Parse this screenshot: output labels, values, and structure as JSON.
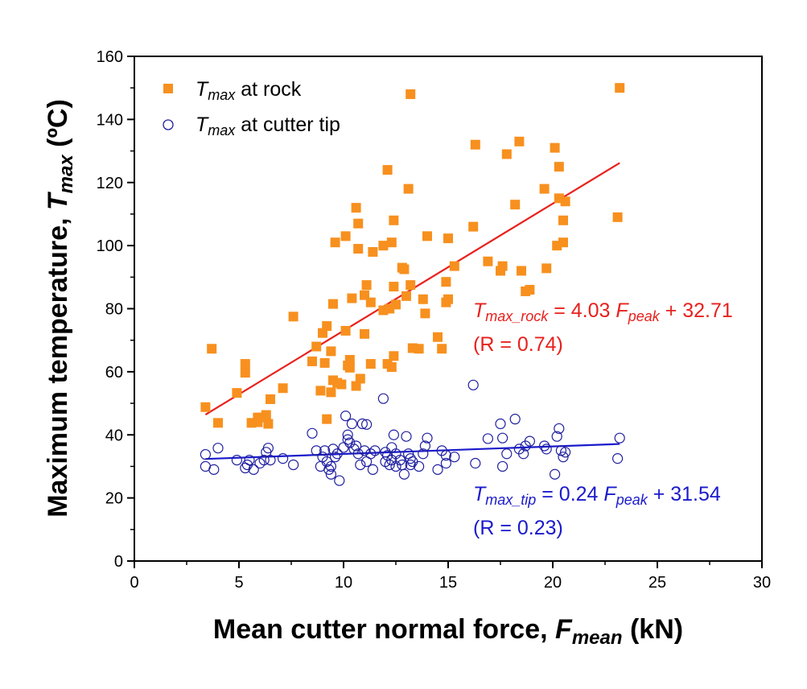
{
  "chart_data": {
    "type": "scatter",
    "title": "",
    "xlabel": {
      "main": "Mean cutter normal force, ",
      "var": "F",
      "sub": "mean",
      "unit": " (kN)"
    },
    "ylabel": {
      "main": "Maximum temperature, ",
      "var": "T",
      "sub": "max",
      "unit": " (ºC)"
    },
    "xlim": [
      0,
      30
    ],
    "ylim": [
      0,
      160
    ],
    "x_ticks": [
      0,
      5,
      10,
      15,
      20,
      25,
      30
    ],
    "y_ticks": [
      0,
      20,
      40,
      60,
      80,
      100,
      120,
      140,
      160
    ],
    "x_tick_labels": [
      "0",
      "5",
      "10",
      "15",
      "20",
      "25",
      "30"
    ],
    "y_tick_labels": [
      "0",
      "20",
      "40",
      "60",
      "80",
      "100",
      "120",
      "140",
      "160"
    ],
    "legend": {
      "position": "top-left",
      "entries": [
        {
          "var": "T",
          "sub": "max",
          "text": " at rock",
          "marker": "square",
          "color": "#f7901e"
        },
        {
          "var": "T",
          "sub": "max",
          "text": " at cutter tip",
          "marker": "circle",
          "color": "#1f1fa0"
        }
      ]
    },
    "series": [
      {
        "name": "Tmax at rock",
        "marker": "square",
        "color": "#f7901e",
        "points": [
          [
            3.4,
            48.8
          ],
          [
            3.7,
            67.3
          ],
          [
            4.0,
            43.8
          ],
          [
            4.9,
            53.3
          ],
          [
            5.3,
            62.5
          ],
          [
            5.3,
            59.7
          ],
          [
            5.6,
            43.8
          ],
          [
            5.9,
            45.5
          ],
          [
            5.9,
            44.0
          ],
          [
            6.1,
            45.5
          ],
          [
            6.3,
            46.3
          ],
          [
            6.4,
            43.5
          ],
          [
            6.5,
            51.3
          ],
          [
            7.1,
            54.8
          ],
          [
            7.6,
            77.5
          ],
          [
            8.5,
            63.3
          ],
          [
            8.7,
            68.0
          ],
          [
            8.9,
            54.0
          ],
          [
            9.0,
            72.3
          ],
          [
            9.1,
            62.8
          ],
          [
            9.2,
            74.5
          ],
          [
            9.2,
            45.0
          ],
          [
            9.4,
            66.5
          ],
          [
            9.4,
            53.5
          ],
          [
            9.5,
            81.5
          ],
          [
            9.5,
            57.3
          ],
          [
            9.6,
            101.0
          ],
          [
            9.7,
            56.5
          ],
          [
            9.9,
            56.0
          ],
          [
            10.1,
            103.0
          ],
          [
            10.1,
            73.0
          ],
          [
            10.2,
            62.0
          ],
          [
            10.3,
            63.8
          ],
          [
            10.3,
            61.3
          ],
          [
            10.4,
            83.3
          ],
          [
            10.6,
            55.5
          ],
          [
            10.6,
            112.0
          ],
          [
            10.7,
            107.0
          ],
          [
            10.7,
            99.0
          ],
          [
            10.8,
            57.8
          ],
          [
            11.0,
            84.3
          ],
          [
            11.0,
            72.0
          ],
          [
            11.1,
            87.5
          ],
          [
            11.3,
            82.0
          ],
          [
            11.3,
            62.5
          ],
          [
            11.4,
            98.0
          ],
          [
            11.9,
            100.0
          ],
          [
            11.9,
            79.5
          ],
          [
            12.1,
            124.0
          ],
          [
            12.1,
            62.5
          ],
          [
            12.2,
            80.0
          ],
          [
            12.3,
            101.0
          ],
          [
            12.3,
            61.5
          ],
          [
            12.4,
            108.0
          ],
          [
            12.4,
            87.0
          ],
          [
            12.4,
            65.0
          ],
          [
            12.5,
            81.3
          ],
          [
            12.8,
            93.0
          ],
          [
            12.9,
            92.5
          ],
          [
            13.0,
            84.0
          ],
          [
            13.1,
            118.0
          ],
          [
            13.2,
            148.0
          ],
          [
            13.2,
            87.5
          ],
          [
            13.3,
            67.5
          ],
          [
            13.6,
            67.3
          ],
          [
            13.8,
            83.0
          ],
          [
            13.9,
            78.5
          ],
          [
            14.0,
            103.0
          ],
          [
            14.5,
            71.0
          ],
          [
            14.7,
            67.3
          ],
          [
            14.9,
            82.0
          ],
          [
            14.9,
            88.5
          ],
          [
            15.0,
            102.3
          ],
          [
            15.0,
            83.0
          ],
          [
            15.3,
            93.5
          ],
          [
            16.2,
            106.0
          ],
          [
            16.3,
            132.0
          ],
          [
            16.9,
            95.0
          ],
          [
            17.5,
            92.0
          ],
          [
            17.6,
            93.5
          ],
          [
            17.8,
            129.0
          ],
          [
            18.2,
            113.0
          ],
          [
            18.4,
            133.0
          ],
          [
            18.5,
            92.0
          ],
          [
            18.7,
            85.5
          ],
          [
            18.9,
            86.0
          ],
          [
            19.6,
            118.0
          ],
          [
            19.7,
            92.8
          ],
          [
            20.1,
            131.0
          ],
          [
            20.2,
            100.0
          ],
          [
            20.3,
            125.0
          ],
          [
            20.3,
            115.0
          ],
          [
            20.5,
            108.0
          ],
          [
            20.5,
            101.0
          ],
          [
            20.6,
            114.0
          ],
          [
            23.1,
            109.0
          ],
          [
            23.2,
            150.0
          ]
        ]
      },
      {
        "name": "Tmax at cutter tip",
        "marker": "circle",
        "color": "#1f1fa0",
        "points": [
          [
            3.4,
            33.8
          ],
          [
            3.4,
            30.0
          ],
          [
            3.8,
            29.0
          ],
          [
            4.0,
            35.8
          ],
          [
            4.9,
            32.0
          ],
          [
            5.3,
            29.5
          ],
          [
            5.4,
            30.5
          ],
          [
            5.5,
            32.0
          ],
          [
            5.7,
            29.0
          ],
          [
            6.0,
            31.0
          ],
          [
            6.2,
            32.0
          ],
          [
            6.3,
            34.5
          ],
          [
            6.4,
            35.8
          ],
          [
            6.5,
            32.0
          ],
          [
            7.1,
            32.5
          ],
          [
            7.6,
            30.5
          ],
          [
            8.5,
            40.5
          ],
          [
            8.7,
            35.0
          ],
          [
            8.9,
            30.0
          ],
          [
            9.0,
            33.0
          ],
          [
            9.1,
            35.0
          ],
          [
            9.2,
            31.5
          ],
          [
            9.3,
            29.0
          ],
          [
            9.4,
            27.5
          ],
          [
            9.4,
            30.0
          ],
          [
            9.5,
            35.5
          ],
          [
            9.6,
            33.0
          ],
          [
            9.7,
            34.0
          ],
          [
            9.8,
            25.5
          ],
          [
            10.0,
            36.0
          ],
          [
            10.1,
            46.0
          ],
          [
            10.2,
            40.0
          ],
          [
            10.2,
            38.5
          ],
          [
            10.3,
            37.5
          ],
          [
            10.4,
            43.5
          ],
          [
            10.5,
            35.5
          ],
          [
            10.6,
            36.5
          ],
          [
            10.7,
            34.0
          ],
          [
            10.8,
            30.5
          ],
          [
            10.9,
            43.5
          ],
          [
            11.0,
            35.0
          ],
          [
            11.1,
            43.3
          ],
          [
            11.1,
            31.5
          ],
          [
            11.3,
            34.0
          ],
          [
            11.4,
            29.0
          ],
          [
            11.5,
            35.0
          ],
          [
            11.9,
            51.5
          ],
          [
            12.0,
            34.5
          ],
          [
            12.0,
            31.5
          ],
          [
            12.1,
            33.5
          ],
          [
            12.2,
            30.5
          ],
          [
            12.3,
            36.0
          ],
          [
            12.3,
            32.0
          ],
          [
            12.4,
            40.0
          ],
          [
            12.5,
            34.0
          ],
          [
            12.5,
            30.0
          ],
          [
            12.7,
            32.0
          ],
          [
            12.8,
            30.5
          ],
          [
            12.9,
            27.5
          ],
          [
            13.0,
            39.5
          ],
          [
            13.1,
            34.0
          ],
          [
            13.2,
            32.5
          ],
          [
            13.2,
            30.5
          ],
          [
            13.3,
            31.5
          ],
          [
            13.6,
            30.0
          ],
          [
            13.8,
            34.0
          ],
          [
            13.9,
            36.5
          ],
          [
            14.0,
            39.0
          ],
          [
            14.5,
            29.0
          ],
          [
            14.7,
            35.0
          ],
          [
            14.9,
            31.0
          ],
          [
            14.9,
            33.5
          ],
          [
            15.3,
            33.0
          ],
          [
            16.2,
            55.8
          ],
          [
            16.3,
            31.0
          ],
          [
            16.9,
            38.8
          ],
          [
            17.5,
            43.5
          ],
          [
            17.6,
            39.0
          ],
          [
            17.6,
            30.0
          ],
          [
            17.8,
            34.0
          ],
          [
            18.2,
            45.0
          ],
          [
            18.4,
            35.5
          ],
          [
            18.6,
            34.0
          ],
          [
            18.7,
            36.5
          ],
          [
            18.9,
            38.0
          ],
          [
            19.6,
            36.5
          ],
          [
            19.7,
            35.5
          ],
          [
            20.1,
            27.5
          ],
          [
            20.2,
            39.5
          ],
          [
            20.3,
            42.0
          ],
          [
            20.4,
            35.0
          ],
          [
            20.5,
            33.0
          ],
          [
            20.6,
            34.5
          ],
          [
            23.1,
            32.5
          ],
          [
            23.2,
            39.0
          ]
        ]
      }
    ],
    "fits": [
      {
        "name": "rock fit",
        "color": "#e8211d",
        "slope": 4.03,
        "intercept": 32.71,
        "x_range": [
          3.4,
          23.2
        ]
      },
      {
        "name": "tip fit",
        "color": "#1a1acc",
        "slope": 0.24,
        "intercept": 31.54,
        "x_range": [
          3.4,
          23.2
        ]
      }
    ],
    "annotations": [
      {
        "color": "#e8211d",
        "var": "T",
        "sub": "max_rock",
        "eq_mid": " = 4.03 ",
        "var2": "F",
        "sub2": "peak",
        "eq_end": " + 32.71",
        "r_text": "(R = 0.74)"
      },
      {
        "color": "#1a1acc",
        "var": "T",
        "sub": "max_tip",
        "eq_mid": " = 0.24 ",
        "var2": "F",
        "sub2": "peak",
        "eq_end": " + 31.54",
        "r_text": "(R = 0.23)"
      }
    ]
  }
}
